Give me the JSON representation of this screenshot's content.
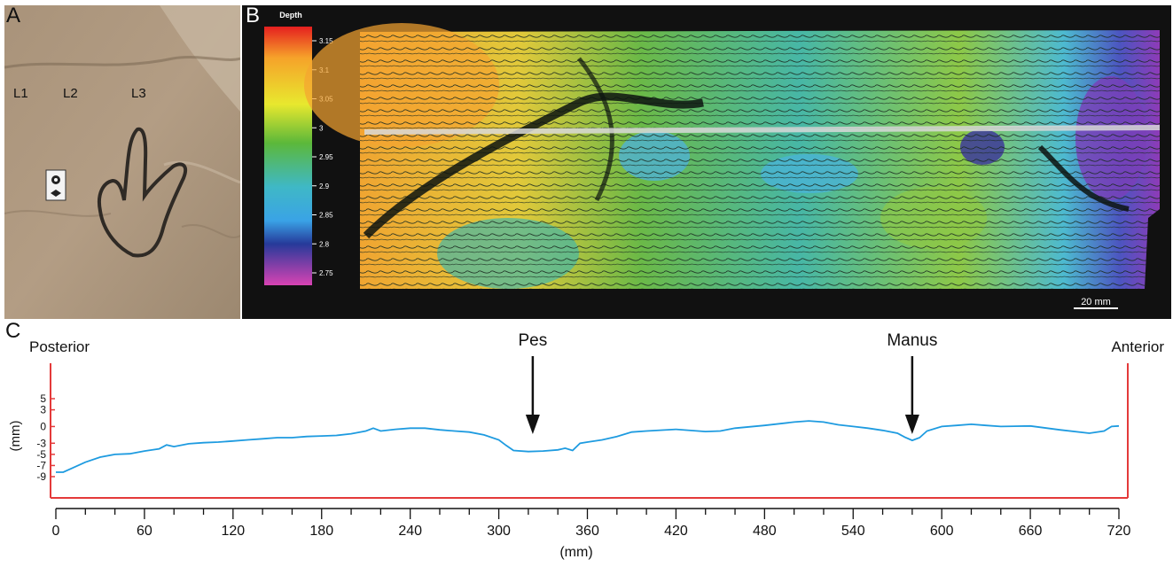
{
  "figure": {
    "panel_a": {
      "letter": "A",
      "track_labels": [
        "L1",
        "L2",
        "L3"
      ]
    },
    "panel_b": {
      "letter": "B",
      "colorbar_title": "Depth",
      "colorbar_ticks": [
        "3.15",
        "3.1",
        "3.05",
        "3",
        "2.95",
        "2.9",
        "2.85",
        "2.8",
        "2.75"
      ],
      "scale_bar": "20 mm"
    },
    "panel_c": {
      "letter": "C",
      "left_end": "Posterior",
      "right_end": "Anterior",
      "pes_label": "Pes",
      "manus_label": "Manus",
      "x_unit": "(mm)",
      "y_unit": "(mm)"
    }
  },
  "chart_data": {
    "type": "line",
    "title": "",
    "xlabel": "(mm)",
    "ylabel": "(mm)",
    "xlim": [
      0,
      720
    ],
    "ylim": [
      -10,
      7
    ],
    "x_ticks": [
      0,
      60,
      120,
      180,
      240,
      300,
      360,
      420,
      480,
      540,
      600,
      660,
      720
    ],
    "y_ticks": [
      5,
      3,
      0,
      -3,
      -5,
      -7,
      -9
    ],
    "annotations": [
      {
        "text": "Pes",
        "x": 323
      },
      {
        "text": "Manus",
        "x": 580
      }
    ],
    "series": [
      {
        "color": "#1e9be0",
        "x": [
          0,
          5,
          10,
          20,
          30,
          40,
          50,
          60,
          70,
          75,
          80,
          90,
          100,
          110,
          120,
          130,
          140,
          150,
          160,
          170,
          180,
          190,
          200,
          210,
          215,
          220,
          230,
          240,
          250,
          260,
          270,
          280,
          290,
          300,
          305,
          310,
          320,
          330,
          340,
          345,
          350,
          355,
          360,
          370,
          380,
          390,
          400,
          420,
          440,
          450,
          460,
          480,
          500,
          510,
          520,
          530,
          540,
          550,
          560,
          570,
          575,
          580,
          585,
          590,
          600,
          610,
          620,
          630,
          640,
          660,
          680,
          700,
          710,
          715,
          720
        ],
        "y": [
          -8.2,
          -8.2,
          -7.6,
          -6.4,
          -5.5,
          -5.0,
          -4.9,
          -4.4,
          -4.0,
          -3.3,
          -3.6,
          -3.1,
          -2.9,
          -2.8,
          -2.6,
          -2.4,
          -2.2,
          -2.0,
          -2.0,
          -1.8,
          -1.7,
          -1.6,
          -1.3,
          -0.8,
          -0.3,
          -0.8,
          -0.5,
          -0.3,
          -0.3,
          -0.6,
          -0.8,
          -1.0,
          -1.5,
          -2.4,
          -3.4,
          -4.3,
          -4.5,
          -4.4,
          -4.2,
          -3.9,
          -4.3,
          -3.0,
          -2.8,
          -2.4,
          -1.8,
          -1.0,
          -0.8,
          -0.5,
          -0.9,
          -0.8,
          -0.3,
          0.2,
          0.8,
          1.0,
          0.8,
          0.3,
          0.0,
          -0.3,
          -0.7,
          -1.2,
          -1.9,
          -2.5,
          -2.0,
          -0.8,
          0.0,
          0.2,
          0.4,
          0.2,
          0.0,
          0.1,
          -0.6,
          -1.2,
          -0.8,
          0.0,
          0.1
        ]
      }
    ]
  }
}
